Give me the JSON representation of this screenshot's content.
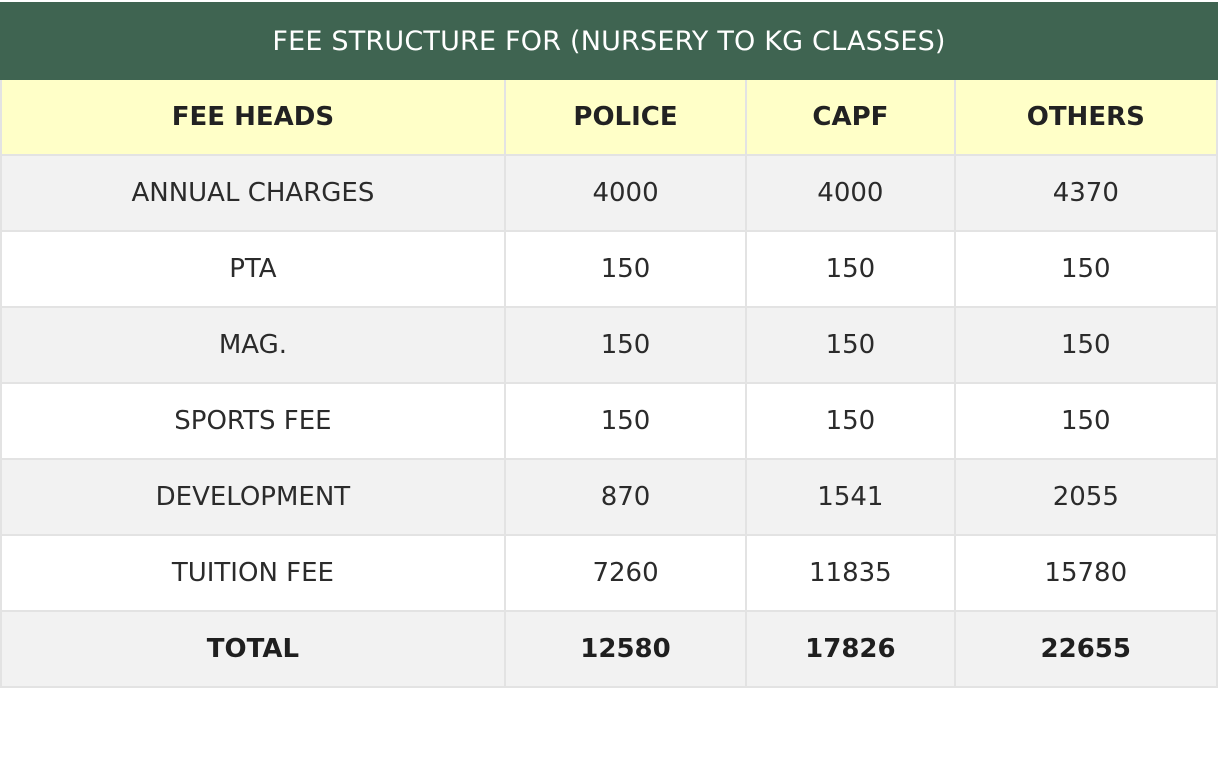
{
  "title": "FEE STRUCTURE FOR (NURSERY TO KG CLASSES)",
  "headers": [
    "FEE HEADS",
    "POLICE",
    "CAPF",
    "OTHERS"
  ],
  "rows": [
    {
      "head": "ANNUAL CHARGES",
      "police": "4000",
      "capf": "4000",
      "others": "4370"
    },
    {
      "head": "PTA",
      "police": "150",
      "capf": "150",
      "others": "150"
    },
    {
      "head": "MAG.",
      "police": "150",
      "capf": "150",
      "others": "150"
    },
    {
      "head": "SPORTS FEE",
      "police": "150",
      "capf": "150",
      "others": "150"
    },
    {
      "head": "DEVELOPMENT",
      "police": "870",
      "capf": "1541",
      "others": "2055"
    },
    {
      "head": "TUITION FEE",
      "police": "7260",
      "capf": "11835",
      "others": "15780"
    }
  ],
  "total": {
    "head": "TOTAL",
    "police": "12580",
    "capf": "17826",
    "others": "22655"
  },
  "colors": {
    "title_bg": "#3f6451",
    "header_bg": "#ffffc8",
    "stripe_bg": "#f2f2f2"
  }
}
